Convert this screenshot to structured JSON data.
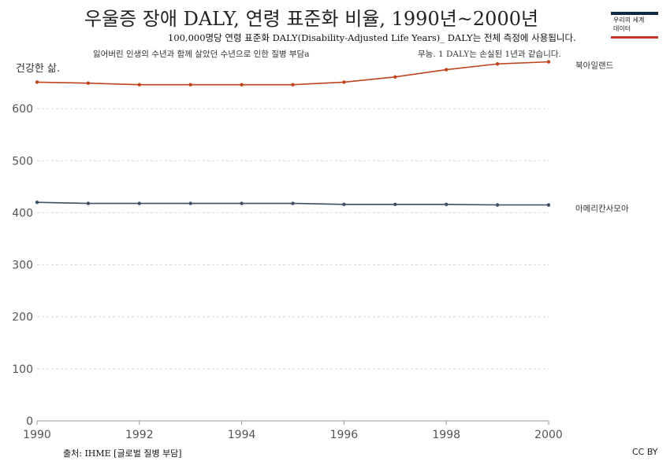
{
  "header": {
    "title": "우울증 장애 DALY, 연령 표준화 비율, 1990년~2000년",
    "subtitle": "100,000명당 연령 표준화 DALY(Disability-Adjusted Life Years)_ DALY는 전체 측정에 사용됩니다.",
    "desc_left": "잃어버린 인생의 수년과 함께 살았던 수년으로 인한 질병 부담a",
    "desc_right": "무능. 1 DALY는 손실된 1년과 같습니다.",
    "ylabel": "건강한 삶."
  },
  "logo": {
    "line1": "우리의 세계",
    "line2": "데이터"
  },
  "footer": {
    "source": "출처: IHME [글로벌 질병 부담]",
    "license": "CC BY"
  },
  "chart_data": {
    "type": "line",
    "x": [
      1990,
      1991,
      1992,
      1993,
      1994,
      1995,
      1996,
      1997,
      1998,
      1999,
      2000
    ],
    "xlim": [
      1990,
      2000
    ],
    "ylim": [
      0,
      700
    ],
    "xticks": [
      "1990",
      "1992",
      "1994",
      "1996",
      "1998",
      "2000"
    ],
    "yticks": [
      "0",
      "100",
      "200",
      "300",
      "400",
      "500",
      "600"
    ],
    "grid": true,
    "series": [
      {
        "name": "북아일랜드",
        "color": "#c0441b",
        "values": [
          651,
          649,
          646,
          646,
          646,
          646,
          651,
          661,
          675,
          686,
          690
        ]
      },
      {
        "name": "아메리칸사모아",
        "color": "#3d4f66",
        "values": [
          420,
          418,
          418,
          418,
          418,
          418,
          416,
          416,
          416,
          415,
          415
        ]
      }
    ]
  }
}
